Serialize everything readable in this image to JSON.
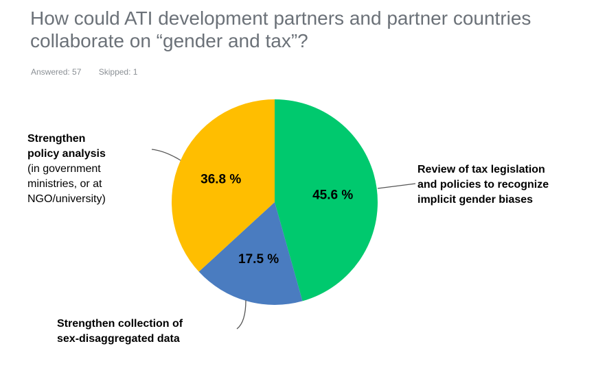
{
  "header": {
    "title": "How could ATI development partners and partner countries collaborate on “gender and tax”?",
    "answered": "Answered: 57",
    "skipped": "Skipped: 1"
  },
  "chart_data": {
    "type": "pie",
    "title": "How could ATI development partners and partner countries collaborate on “gender and tax”?",
    "slices": [
      {
        "name": "Review of tax legislation and policies to recognize implicit gender biases",
        "value": 45.6,
        "label": "45.6 %",
        "color": "#00c96e"
      },
      {
        "name": "Strengthen collection of sex-disaggregated data",
        "value": 17.5,
        "label": "17.5 %",
        "color": "#4a7cc0"
      },
      {
        "name": "Strengthen policy analysis (in government ministries, or at NGO/university)",
        "value": 36.8,
        "label": "36.8 %",
        "color": "#ffbe00"
      }
    ],
    "start": "12 o'clock",
    "direction": "clockwise"
  },
  "legend": {
    "review": [
      "Review of tax legislation",
      "and policies to recognize",
      "implicit gender biases"
    ],
    "collection": [
      "Strengthen collection of",
      "sex-disaggregated data"
    ],
    "policy_bold": [
      "Strengthen",
      "policy analysis"
    ],
    "policy_sub": [
      "(in government",
      "ministries, or at",
      "NGO/university)"
    ]
  }
}
